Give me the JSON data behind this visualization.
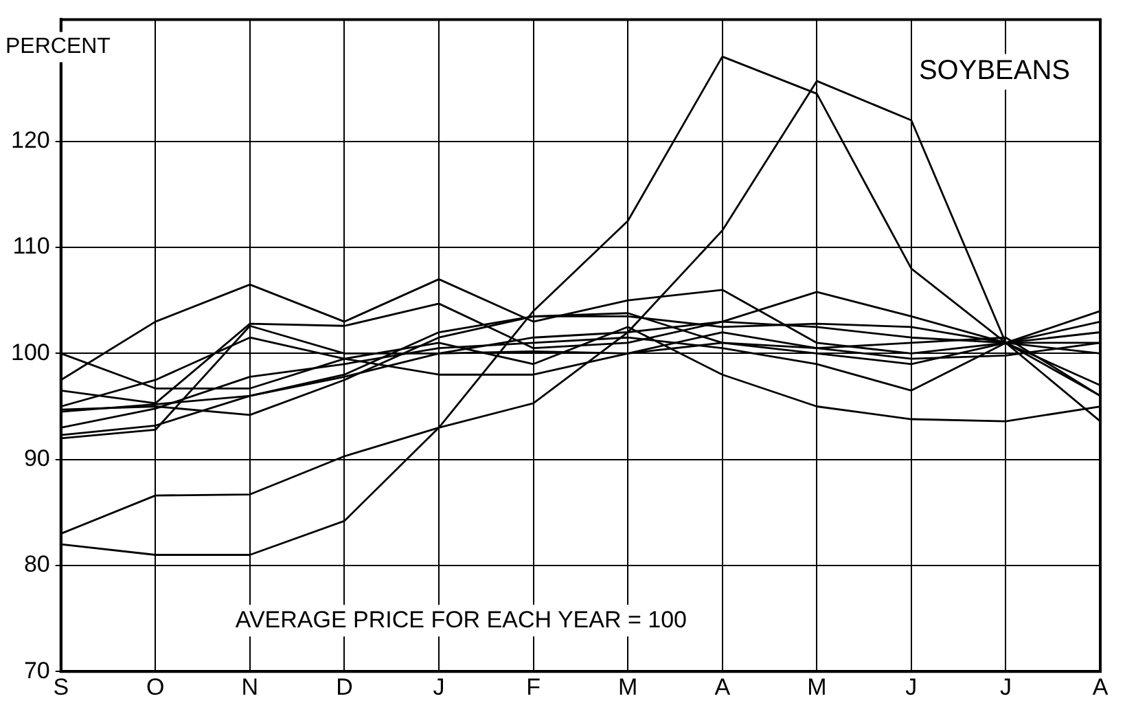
{
  "chart_data": {
    "type": "line",
    "title": "SOYBEANS",
    "ylabel": "PERCENT",
    "annotations": [
      "AVERAGE PRICE FOR EACH YEAR = 100"
    ],
    "categories": [
      "S",
      "O",
      "N",
      "D",
      "J",
      "F",
      "M",
      "A",
      "M",
      "J",
      "J",
      "A"
    ],
    "ylim": [
      70,
      131.5
    ],
    "yticks": [
      70,
      80,
      90,
      100,
      110,
      120
    ],
    "grid": true,
    "legend": false,
    "marker": "none",
    "line_style": "solid",
    "series": [
      {
        "color": "#000000",
        "values": [
          82,
          81,
          81,
          84.2,
          93,
          104,
          112.5,
          128,
          124.5,
          108,
          101,
          93.6
        ]
      },
      {
        "color": "#000000",
        "values": [
          83,
          86.6,
          86.7,
          90.3,
          93,
          95.3,
          102,
          111.6,
          125.7,
          122,
          101,
          96
        ]
      },
      {
        "color": "#000000",
        "values": [
          97.5,
          103,
          106.5,
          103,
          107,
          103,
          105,
          106,
          101,
          100,
          101,
          100
        ]
      },
      {
        "color": "#000000",
        "values": [
          100,
          96.7,
          96.7,
          99.5,
          98,
          98,
          100,
          101,
          100,
          99,
          101,
          101
        ]
      },
      {
        "color": "#000000",
        "values": [
          96.5,
          95.3,
          102.8,
          102.6,
          104.7,
          100.5,
          101,
          103,
          105.8,
          103.5,
          101,
          104
        ]
      },
      {
        "color": "#000000",
        "values": [
          95,
          97.5,
          101.5,
          99.5,
          101,
          99,
          102.5,
          98,
          95,
          93.8,
          93.6,
          95
        ]
      },
      {
        "color": "#000000",
        "values": [
          94.7,
          95,
          94.2,
          97.5,
          101.5,
          103.5,
          103.5,
          102.5,
          102.8,
          102.5,
          101,
          102
        ]
      },
      {
        "color": "#000000",
        "values": [
          93,
          94.8,
          97.8,
          99,
          100.5,
          101,
          101.5,
          100.5,
          99,
          96.5,
          101,
          103
        ]
      },
      {
        "color": "#000000",
        "values": [
          92.3,
          93.2,
          96,
          97.8,
          100,
          100.2,
          100,
          102,
          100.5,
          99.5,
          99.8,
          101
        ]
      },
      {
        "color": "#000000",
        "values": [
          92,
          92.8,
          102.6,
          100,
          100,
          101.5,
          102,
          103,
          102.5,
          101.5,
          101,
          97
        ]
      },
      {
        "color": "#000000",
        "values": [
          94.5,
          95.2,
          96,
          98,
          102,
          103.5,
          103.8,
          101,
          100.5,
          101,
          101.5,
          96
        ]
      }
    ]
  }
}
